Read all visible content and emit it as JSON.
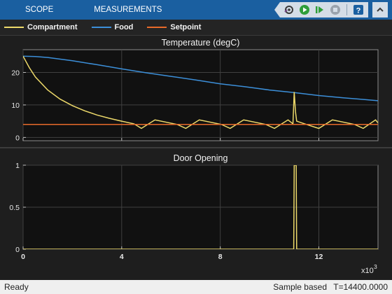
{
  "toolstrip": {
    "tabs": [
      "SCOPE",
      "MEASUREMENTS"
    ],
    "buttons": [
      "settings-icon",
      "run-icon",
      "step-forward-icon",
      "stop-icon",
      "help-icon",
      "collapse-icon"
    ]
  },
  "legend": {
    "items": [
      {
        "label": "Compartment",
        "color": "#edd96a"
      },
      {
        "label": "Food",
        "color": "#3c8fd9"
      },
      {
        "label": "Setpoint",
        "color": "#e86a2a"
      }
    ]
  },
  "status": {
    "left": "Ready",
    "mode": "Sample based",
    "time": "T=14400.0000"
  },
  "colors": {
    "background": "#1e1e1e",
    "axes_background": "#111111",
    "grid": "#404040",
    "toolstrip": "#1a5fa0"
  },
  "chart_data": [
    {
      "type": "line",
      "title": "Temperature (degC)",
      "xlim": [
        0,
        14400
      ],
      "ylim": [
        -1,
        27
      ],
      "yticks": [
        0,
        10,
        20
      ],
      "xticks": [
        0,
        4000,
        8000,
        12000
      ],
      "series": [
        {
          "name": "Food",
          "color": "#3c8fd9",
          "x": [
            0,
            500,
            1000,
            2000,
            3000,
            4000,
            5000,
            6000,
            7000,
            8000,
            9000,
            10000,
            11000,
            12000,
            13000,
            14400
          ],
          "y": [
            25,
            24.9,
            24.6,
            23.6,
            22.4,
            21.1,
            19.9,
            18.8,
            17.7,
            16.5,
            15.6,
            14.6,
            13.8,
            12.9,
            12.2,
            11.3
          ]
        },
        {
          "name": "Compartment",
          "color": "#edd96a",
          "x": [
            0,
            250,
            500,
            1000,
            1500,
            2000,
            2500,
            3000,
            3500,
            4000,
            4500,
            4800,
            5350,
            6250,
            6600,
            7150,
            8050,
            8400,
            8950,
            9850,
            10200,
            10750,
            10950,
            11000,
            11050,
            11100,
            11500,
            11900,
            12000,
            12550,
            13450,
            13800,
            14300,
            14400
          ],
          "y": [
            25,
            21.5,
            18.6,
            14.6,
            11.8,
            9.8,
            8.2,
            6.9,
            5.9,
            5.0,
            4.2,
            2.8,
            5.4,
            4.0,
            2.8,
            5.4,
            4.0,
            2.8,
            5.4,
            4.0,
            2.8,
            5.4,
            4.2,
            14.0,
            8.0,
            5.0,
            4.0,
            3.0,
            2.8,
            5.4,
            4.0,
            2.8,
            5.4,
            4.5
          ]
        },
        {
          "name": "Setpoint",
          "color": "#e86a2a",
          "x": [
            0,
            14400
          ],
          "y": [
            4,
            4
          ]
        }
      ]
    },
    {
      "type": "line",
      "title": "Door Opening",
      "xlim": [
        0,
        14400
      ],
      "ylim": [
        0,
        1
      ],
      "yticks": [
        0,
        0.5,
        1
      ],
      "ytick_labels": [
        "0",
        "0.5",
        "1"
      ],
      "xticks": [
        0,
        4000,
        8000,
        12000
      ],
      "xtick_labels": [
        "0",
        "4",
        "8",
        "12"
      ],
      "x_multiplier": "x10",
      "x_multiplier_exp": "3",
      "series": [
        {
          "name": "Door",
          "color": "#edd96a",
          "x": [
            0,
            10980,
            11000,
            11080,
            11100,
            14400
          ],
          "y": [
            0,
            0,
            1,
            1,
            0,
            0
          ]
        }
      ]
    }
  ]
}
